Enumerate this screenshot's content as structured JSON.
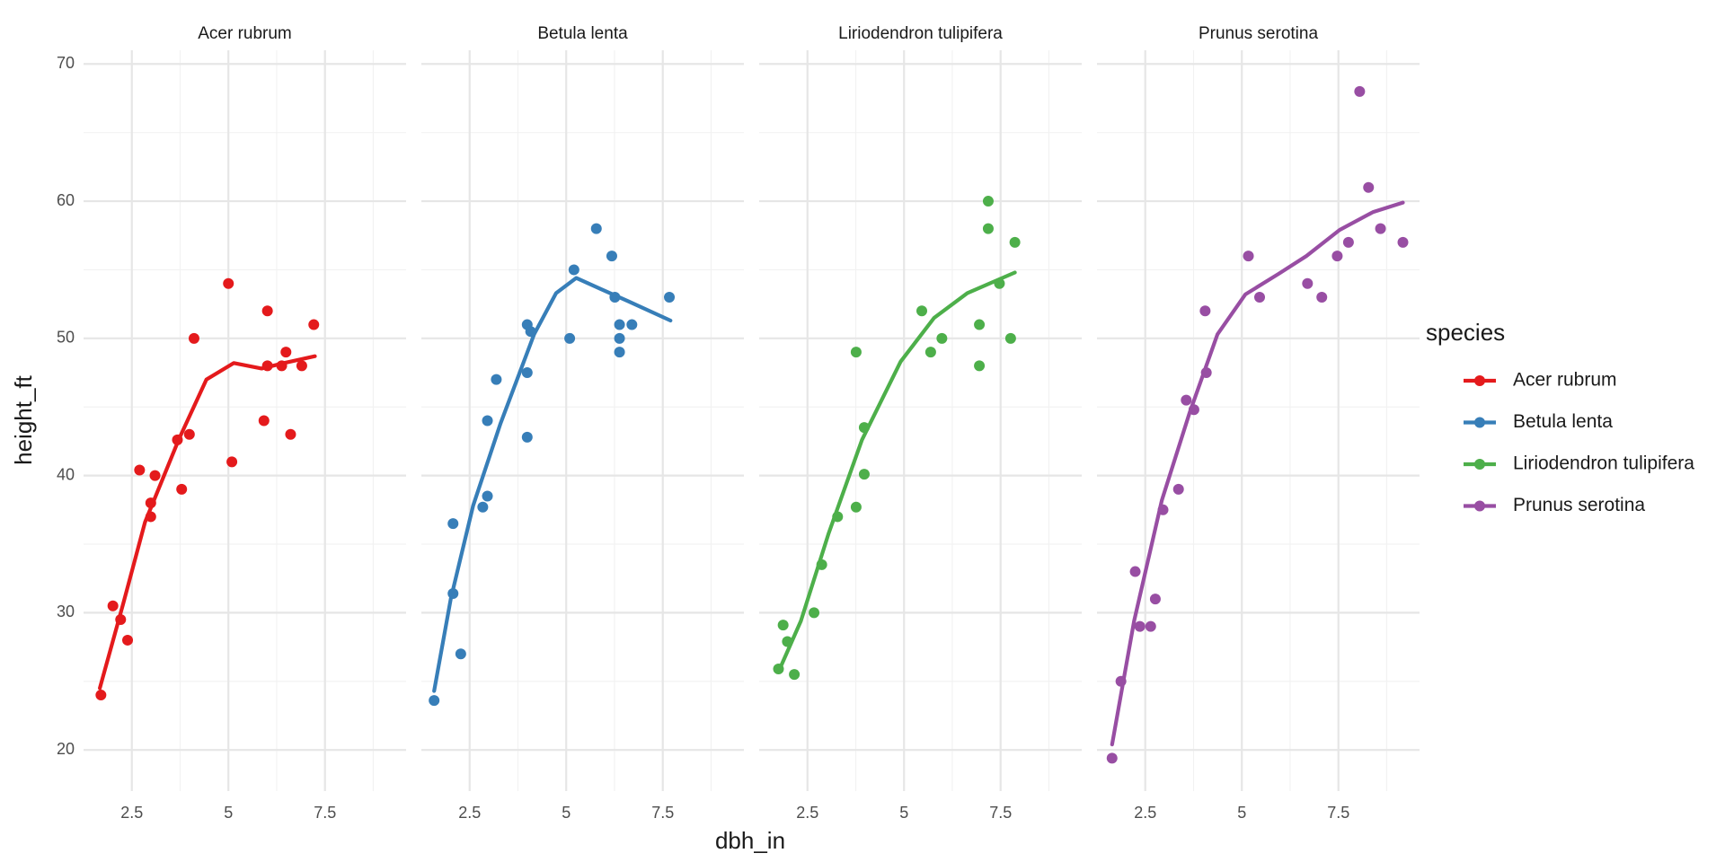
{
  "chart_data": [
    {
      "type": "scatter",
      "title": "Acer rubrum",
      "color": "#e41a1c",
      "x": [
        1.7,
        2.01,
        2.21,
        2.39,
        2.7,
        2.99,
        2.99,
        3.1,
        3.68,
        3.79,
        3.99,
        4.11,
        5.0,
        5.09,
        5.92,
        6.01,
        6.01,
        6.38,
        6.49,
        6.61,
        6.9,
        7.21
      ],
      "values": [
        24,
        30.5,
        29.5,
        28,
        40.4,
        37,
        38,
        40,
        42.6,
        39,
        43,
        50,
        54,
        41,
        44,
        48,
        52,
        48,
        49,
        43,
        48,
        51
      ],
      "trend": {
        "x": [
          1.67,
          2.27,
          2.84,
          3.71,
          4.43,
          5.14,
          5.86,
          6.44,
          7.24
        ],
        "values": [
          24.5,
          30.6,
          36.6,
          42.6,
          47.0,
          48.2,
          47.8,
          48.2,
          48.7
        ]
      },
      "xlim": [
        1.25,
        9.6
      ],
      "ylim": [
        17,
        71
      ],
      "xticks": [
        2.5,
        5.0,
        7.5
      ],
      "yticks": [
        20,
        30,
        40,
        50,
        60,
        70
      ],
      "xminor": [
        3.75,
        6.25,
        8.75
      ],
      "yminor": [
        25,
        35,
        45,
        55,
        65
      ],
      "grid": true
    },
    {
      "type": "scatter",
      "title": "Betula lenta",
      "color": "#377eb8",
      "x": [
        1.58,
        2.07,
        2.07,
        2.27,
        2.84,
        2.96,
        2.96,
        3.19,
        3.99,
        4.08,
        3.99,
        3.99,
        5.09,
        5.2,
        5.78,
        6.18,
        6.26,
        6.38,
        6.38,
        6.38,
        6.7,
        7.67
      ],
      "values": [
        23.6,
        36.5,
        31.4,
        27,
        37.7,
        38.5,
        44,
        47,
        51,
        50.5,
        47.5,
        42.8,
        50,
        55,
        58,
        56,
        53,
        51,
        50,
        49,
        51,
        53
      ],
      "trend": {
        "x": [
          1.58,
          2.01,
          2.59,
          3.3,
          4.17,
          4.74,
          5.26,
          5.89,
          6.61,
          7.7
        ],
        "values": [
          24.3,
          31.0,
          37.8,
          43.8,
          50.3,
          53.3,
          54.4,
          53.6,
          52.7,
          51.3
        ]
      },
      "xlim": [
        1.25,
        9.6
      ],
      "ylim": [
        17,
        71
      ],
      "xticks": [
        2.5,
        5.0,
        7.5
      ],
      "yticks": [
        20,
        30,
        40,
        50,
        60,
        70
      ],
      "xminor": [
        3.75,
        6.25,
        8.75
      ],
      "yminor": [
        25,
        35,
        45,
        55,
        65
      ],
      "grid": true
    },
    {
      "type": "scatter",
      "title": "Liriodendron tulipifera",
      "color": "#4daf4a",
      "x": [
        1.75,
        1.87,
        1.98,
        2.16,
        2.67,
        2.87,
        3.28,
        3.76,
        3.76,
        3.97,
        3.97,
        5.46,
        5.69,
        5.98,
        6.95,
        6.95,
        7.18,
        7.18,
        7.47,
        7.76,
        7.87
      ],
      "values": [
        25.9,
        29.1,
        27.9,
        25.5,
        30,
        33.5,
        37,
        49,
        37.7,
        43.5,
        40.1,
        52,
        49,
        50,
        51,
        48,
        60,
        58,
        54,
        50,
        57
      ],
      "trend": {
        "x": [
          1.75,
          2.33,
          3.05,
          3.91,
          4.91,
          5.78,
          6.64,
          7.87
        ],
        "values": [
          25.7,
          29.4,
          35.8,
          42.6,
          48.3,
          51.5,
          53.3,
          54.8
        ]
      },
      "xlim": [
        1.25,
        9.6
      ],
      "ylim": [
        17,
        71
      ],
      "xticks": [
        2.5,
        5.0,
        7.5
      ],
      "yticks": [
        20,
        30,
        40,
        50,
        60,
        70
      ],
      "xminor": [
        3.75,
        6.25,
        8.75
      ],
      "yminor": [
        25,
        35,
        45,
        55,
        65
      ],
      "grid": true
    },
    {
      "type": "scatter",
      "title": "Prunus serotina",
      "color": "#984ea3",
      "x": [
        1.64,
        1.87,
        2.24,
        2.36,
        2.64,
        2.76,
        2.96,
        3.36,
        3.56,
        3.76,
        4.08,
        4.05,
        5.17,
        5.46,
        6.7,
        7.07,
        7.47,
        7.76,
        8.05,
        8.28,
        8.59,
        9.17
      ],
      "values": [
        19.4,
        25,
        33,
        29,
        29,
        31,
        37.5,
        39,
        45.5,
        44.8,
        47.5,
        52,
        56,
        53,
        54,
        53,
        56,
        57,
        68,
        61,
        58,
        57
      ],
      "trend": {
        "x": [
          1.64,
          2.21,
          2.93,
          3.65,
          4.37,
          5.09,
          5.95,
          6.67,
          7.53,
          8.39,
          9.17
        ],
        "values": [
          20.4,
          29.4,
          38.2,
          44.6,
          50.3,
          53.2,
          54.7,
          56.0,
          57.9,
          59.2,
          59.9
        ]
      },
      "xlim": [
        1.25,
        9.6
      ],
      "ylim": [
        17,
        71
      ],
      "xticks": [
        2.5,
        5.0,
        7.5
      ],
      "yticks": [
        20,
        30,
        40,
        50,
        60,
        70
      ],
      "xminor": [
        3.75,
        6.25,
        8.75
      ],
      "yminor": [
        25,
        35,
        45,
        55,
        65
      ],
      "grid": true
    }
  ],
  "x_label": "dbh_in",
  "y_label": "height_ft",
  "legend": {
    "title": "species",
    "items": [
      {
        "name": "Acer rubrum",
        "color": "#e41a1c"
      },
      {
        "name": "Betula lenta",
        "color": "#377eb8"
      },
      {
        "name": "Liriodendron tulipifera",
        "color": "#4daf4a"
      },
      {
        "name": "Prunus serotina",
        "color": "#984ea3"
      }
    ]
  }
}
